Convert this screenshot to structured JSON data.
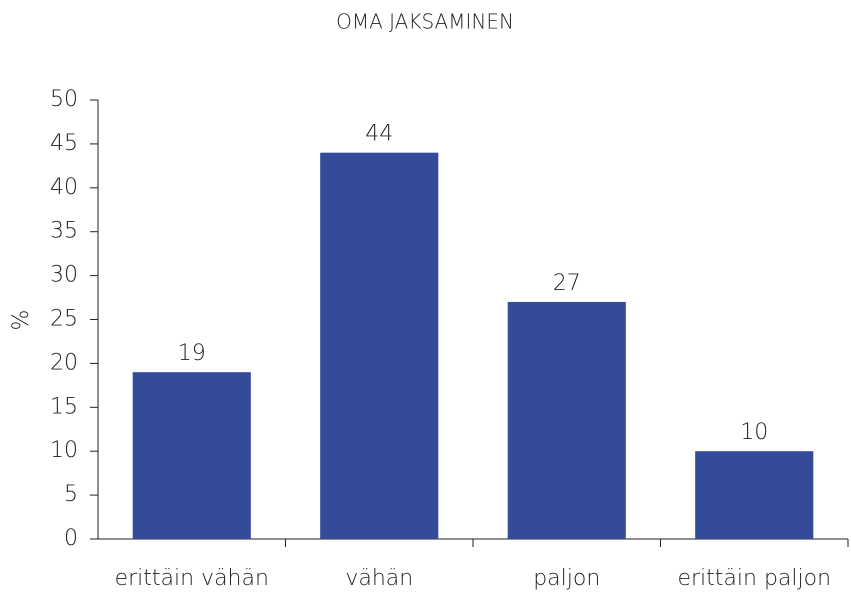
{
  "chart_data": {
    "type": "bar",
    "title": "OMA JAKSAMINEN",
    "y_label": "%",
    "categories": [
      "erittäin vähän",
      "vähän",
      "paljon",
      "erittäin paljon"
    ],
    "values": [
      19,
      44,
      27,
      10
    ],
    "color": "#344b99",
    "ylim": [
      0,
      50
    ],
    "yticks": [
      0,
      5,
      10,
      15,
      20,
      25,
      30,
      35,
      40,
      45,
      50
    ],
    "grid": false
  }
}
